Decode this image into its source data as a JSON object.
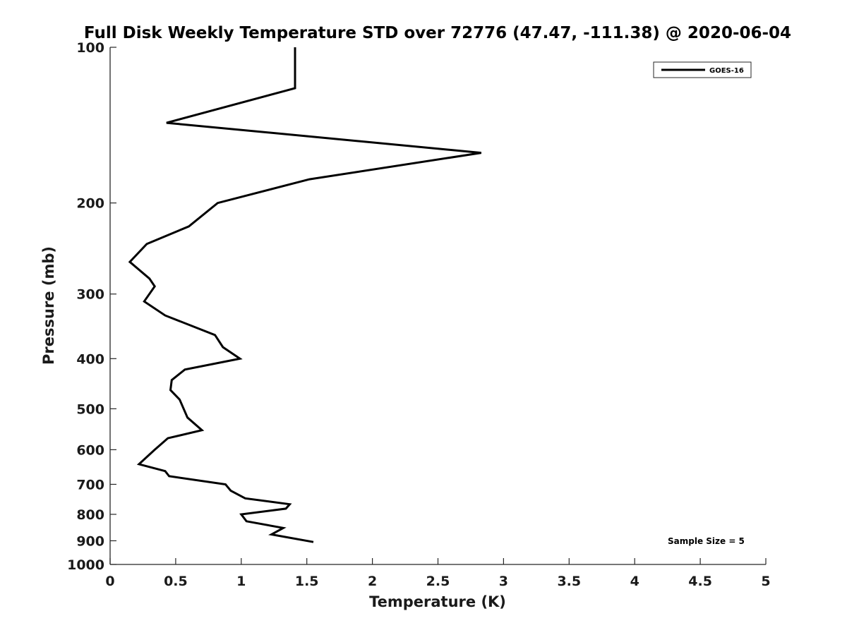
{
  "chart_data": {
    "type": "line",
    "title": "Full Disk Weekly Temperature STD over 72776 (47.47, -111.38) @ 2020-06-04",
    "xlabel": "Temperature (K)",
    "ylabel": "Pressure (mb)",
    "xlim": [
      0,
      5
    ],
    "ylim": [
      1000,
      100
    ],
    "yscale": "log",
    "grid": false,
    "legend_position": "top-right",
    "xticks": [
      0,
      0.5,
      1,
      1.5,
      2,
      2.5,
      3,
      3.5,
      4,
      4.5,
      5
    ],
    "xtick_labels": [
      "0",
      "0.5",
      "1",
      "1.5",
      "2",
      "2.5",
      "3",
      "3.5",
      "4",
      "4.5",
      "5"
    ],
    "yticks": [
      100,
      200,
      300,
      400,
      500,
      600,
      700,
      800,
      900,
      1000
    ],
    "ytick_labels": [
      "100",
      "200",
      "300",
      "400",
      "500",
      "600",
      "700",
      "800",
      "900",
      "1000"
    ],
    "series": [
      {
        "name": "GOES-16",
        "color": "#000000",
        "points": [
          {
            "x": 1.41,
            "p": 100
          },
          {
            "x": 1.41,
            "p": 120
          },
          {
            "x": 0.43,
            "p": 140
          },
          {
            "x": 2.83,
            "p": 160
          },
          {
            "x": 1.52,
            "p": 180
          },
          {
            "x": 0.82,
            "p": 200
          },
          {
            "x": 0.6,
            "p": 222
          },
          {
            "x": 0.28,
            "p": 240
          },
          {
            "x": 0.15,
            "p": 260
          },
          {
            "x": 0.3,
            "p": 280
          },
          {
            "x": 0.34,
            "p": 290
          },
          {
            "x": 0.26,
            "p": 310
          },
          {
            "x": 0.42,
            "p": 330
          },
          {
            "x": 0.8,
            "p": 360
          },
          {
            "x": 0.86,
            "p": 380
          },
          {
            "x": 0.99,
            "p": 400
          },
          {
            "x": 0.57,
            "p": 420
          },
          {
            "x": 0.47,
            "p": 440
          },
          {
            "x": 0.46,
            "p": 460
          },
          {
            "x": 0.53,
            "p": 480
          },
          {
            "x": 0.59,
            "p": 520
          },
          {
            "x": 0.7,
            "p": 550
          },
          {
            "x": 0.44,
            "p": 570
          },
          {
            "x": 0.34,
            "p": 600
          },
          {
            "x": 0.22,
            "p": 640
          },
          {
            "x": 0.42,
            "p": 660
          },
          {
            "x": 0.45,
            "p": 675
          },
          {
            "x": 0.88,
            "p": 700
          },
          {
            "x": 0.92,
            "p": 720
          },
          {
            "x": 1.03,
            "p": 745
          },
          {
            "x": 1.37,
            "p": 765
          },
          {
            "x": 1.34,
            "p": 780
          },
          {
            "x": 1.0,
            "p": 800
          },
          {
            "x": 1.04,
            "p": 825
          },
          {
            "x": 1.32,
            "p": 850
          },
          {
            "x": 1.23,
            "p": 875
          },
          {
            "x": 1.55,
            "p": 905
          }
        ]
      }
    ],
    "annotation": "Sample Size = 5"
  }
}
